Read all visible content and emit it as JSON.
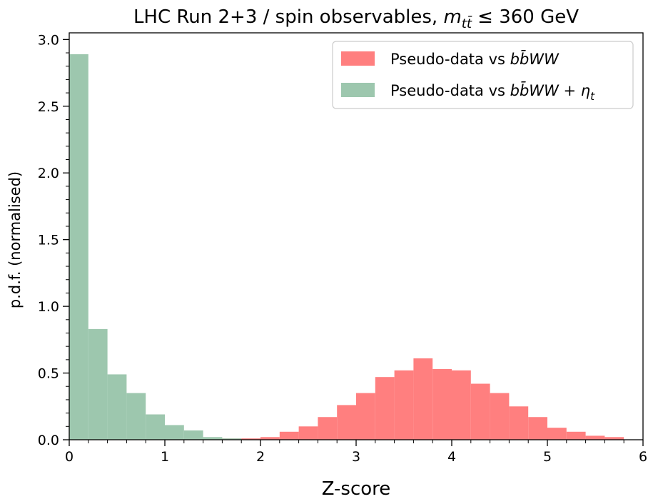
{
  "chart_data": {
    "type": "histogram",
    "title_prefix": "LHC Run 2+3 / spin observables, ",
    "title_math": "m",
    "title_math_sub": "tt̄",
    "title_suffix": " ≤ 360 GeV",
    "xlabel": "Z-score",
    "ylabel": "p.d.f. (normalised)",
    "xlim": [
      0,
      6
    ],
    "ylim": [
      0,
      3.05
    ],
    "x_ticks": [
      0,
      1,
      2,
      3,
      4,
      5,
      6
    ],
    "x_tick_labels": [
      "0",
      "1",
      "2",
      "3",
      "4",
      "5",
      "6"
    ],
    "y_ticks": [
      0.0,
      0.5,
      1.0,
      1.5,
      2.0,
      2.5,
      3.0
    ],
    "y_tick_labels": [
      "0.0",
      "0.5",
      "1.0",
      "1.5",
      "2.0",
      "2.5",
      "3.0"
    ],
    "grid": false,
    "legend_position": "top-right",
    "bin_width": 0.2,
    "series": [
      {
        "name_text": "Pseudo-data vs ",
        "name_math": "bb̄WW",
        "name_math_suffix": "",
        "color": "#ff7f7f",
        "bins_start": 1.6,
        "values": [
          0.01,
          0.01,
          0.02,
          0.06,
          0.1,
          0.17,
          0.26,
          0.35,
          0.47,
          0.52,
          0.61,
          0.53,
          0.52,
          0.42,
          0.35,
          0.25,
          0.17,
          0.09,
          0.06,
          0.03,
          0.02
        ]
      },
      {
        "name_text": "Pseudo-data vs ",
        "name_math": "bb̄WW",
        "name_math_suffix": " + η",
        "name_math_sub": "t",
        "color": "#9dc7ae",
        "bins_start": 0.0,
        "values": [
          2.89,
          0.83,
          0.49,
          0.35,
          0.19,
          0.11,
          0.07,
          0.02,
          0.01
        ]
      }
    ]
  }
}
